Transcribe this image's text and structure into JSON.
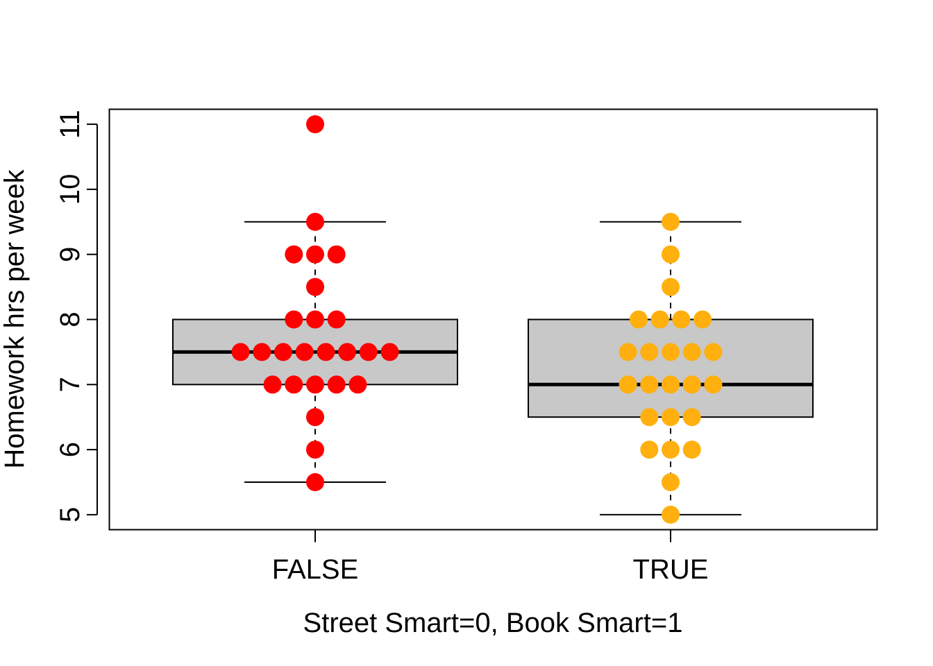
{
  "chart_data": {
    "type": "box",
    "title": "",
    "xlabel": "Street Smart=0, Book Smart=1",
    "ylabel": "Homework hrs per week",
    "ylim": [
      4.77,
      11.23
    ],
    "yticks": [
      5,
      6,
      7,
      8,
      9,
      10,
      11
    ],
    "categories": [
      "FALSE",
      "TRUE"
    ],
    "boxes": [
      {
        "name": "FALSE",
        "whisker_low": 5.5,
        "q1": 7,
        "median": 7.5,
        "q3": 8,
        "whisker_high": 9.5,
        "box_color": "#C8C8C8",
        "point_color": "#FF0000"
      },
      {
        "name": "TRUE",
        "whisker_low": 5,
        "q1": 6.5,
        "median": 7,
        "q3": 8,
        "whisker_high": 9.5,
        "box_color": "#C8C8C8",
        "point_color": "#FFB00F"
      }
    ],
    "points": [
      [
        {
          "y": 5.5,
          "count": 1
        },
        {
          "y": 6,
          "count": 1
        },
        {
          "y": 6.5,
          "count": 1
        },
        {
          "y": 7,
          "count": 5
        },
        {
          "y": 7.5,
          "count": 8
        },
        {
          "y": 8,
          "count": 3
        },
        {
          "y": 8.5,
          "count": 1
        },
        {
          "y": 9,
          "count": 3
        },
        {
          "y": 9.5,
          "count": 1
        },
        {
          "y": 11,
          "count": 1
        }
      ],
      [
        {
          "y": 5,
          "count": 1
        },
        {
          "y": 5.5,
          "count": 1
        },
        {
          "y": 6,
          "count": 3
        },
        {
          "y": 6.5,
          "count": 3
        },
        {
          "y": 7,
          "count": 5
        },
        {
          "y": 7.5,
          "count": 5
        },
        {
          "y": 8,
          "count": 4
        },
        {
          "y": 8.5,
          "count": 1
        },
        {
          "y": 9,
          "count": 1
        },
        {
          "y": 9.5,
          "count": 1
        }
      ]
    ]
  }
}
